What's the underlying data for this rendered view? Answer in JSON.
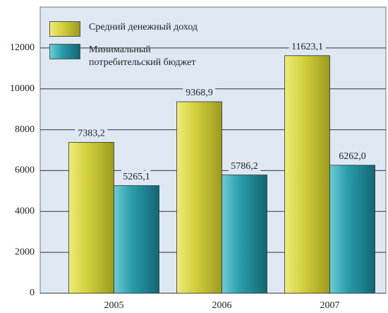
{
  "chart_data": {
    "type": "bar",
    "categories": [
      "2005",
      "2006",
      "2007"
    ],
    "series": [
      {
        "name": "Средний денежный доход",
        "color": "#c9c63a",
        "values": [
          7383.2,
          9368.9,
          11623.1
        ],
        "value_labels": [
          "7383,2",
          "9368,9",
          "11623,1"
        ]
      },
      {
        "name": "Минимальный потребительский бюджет",
        "color": "#2a98a6",
        "values": [
          5265.1,
          5786.2,
          6262.0
        ],
        "value_labels": [
          "5265,1",
          "5786,2",
          "6262,0"
        ]
      }
    ],
    "ylim": [
      0,
      14000
    ],
    "yticks": [
      0,
      2000,
      4000,
      6000,
      8000,
      10000,
      12000
    ],
    "grid": true
  }
}
